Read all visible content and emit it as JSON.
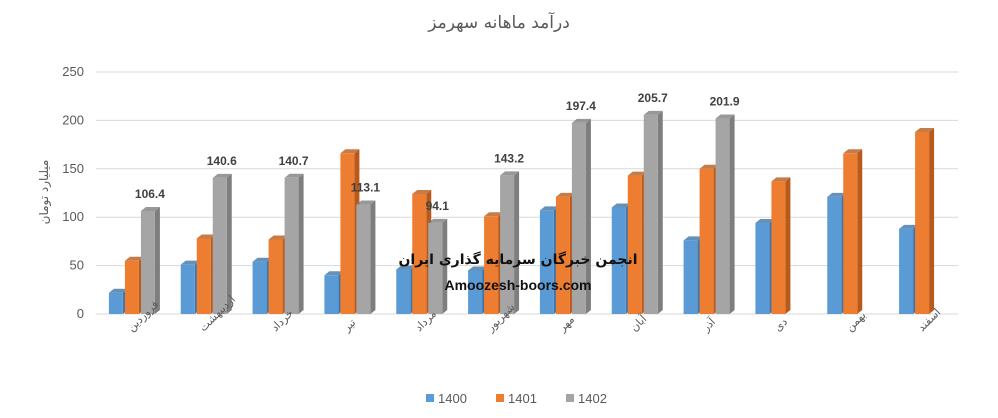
{
  "chart_data": {
    "type": "bar",
    "title": "درآمد ماهانه سهرمز",
    "ylabel": "میلیارد تومان",
    "ylim": [
      0,
      250
    ],
    "yticks": [
      0,
      50,
      100,
      150,
      200,
      250
    ],
    "grid": true,
    "legend_position": "bottom",
    "categories": [
      "فروردین",
      "اردیبهشت",
      "خرداد",
      "تیر",
      "مرداد",
      "شهریور",
      "مهر",
      "آبان",
      "آذر",
      "دی",
      "بهمن",
      "اسفند"
    ],
    "series": [
      {
        "name": "1400",
        "color": "#5B9BD5",
        "side": "#3F75A8",
        "values": [
          22,
          51,
          54,
          40,
          46,
          45,
          107,
          110,
          76,
          94,
          121,
          88
        ]
      },
      {
        "name": "1401",
        "color": "#ED7D31",
        "side": "#B85A1C",
        "values": [
          55,
          78,
          77,
          166,
          124,
          101,
          121,
          143,
          150,
          137,
          166,
          188
        ]
      },
      {
        "name": "1402",
        "color": "#A5A5A5",
        "side": "#7E7E7E",
        "values": [
          106.4,
          140.6,
          140.7,
          113.1,
          94.1,
          143.2,
          197.4,
          205.7,
          201.9,
          null,
          null,
          null
        ]
      }
    ],
    "data_labels": {
      "series": "1402",
      "labels": [
        "106.4",
        "140.6",
        "140.7",
        "113.1",
        "94.1",
        "143.2",
        "197.4",
        "205.7",
        "201.9"
      ]
    }
  },
  "watermark": {
    "line1": "انجمن خبرگان سرمایه گذاری ایران",
    "line2": "Amoozesh-boors.com"
  }
}
